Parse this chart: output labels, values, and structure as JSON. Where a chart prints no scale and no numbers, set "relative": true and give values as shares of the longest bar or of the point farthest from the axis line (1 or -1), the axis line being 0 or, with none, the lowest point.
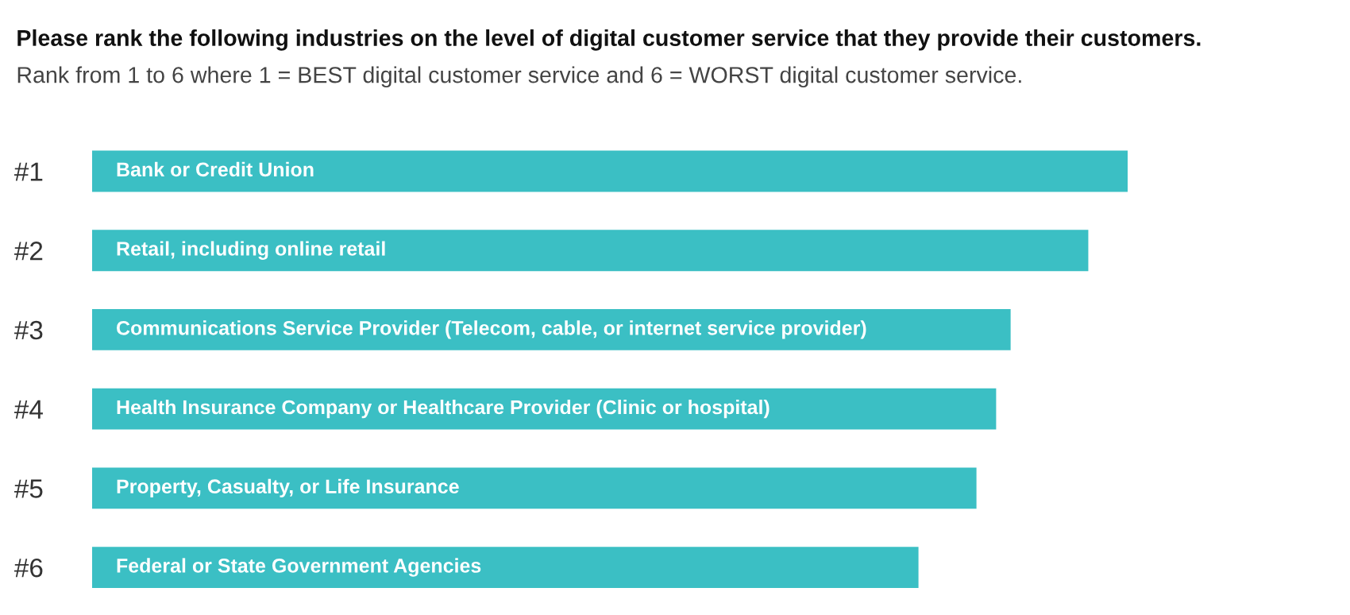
{
  "chart_data": {
    "type": "bar",
    "orientation": "horizontal",
    "relative": true,
    "title": "Please rank the following industries on the level of digital customer service that they provide their customers.",
    "subtitle": "Rank from 1 to 6 where 1 = BEST digital customer service and 6 = WORST digital customer service.",
    "categories": [
      "#1",
      "#2",
      "#3",
      "#4",
      "#5",
      "#6"
    ],
    "values": [
      1,
      0.962,
      0.887,
      0.873,
      0.854,
      0.798
    ],
    "color": "#3bbfc4",
    "annotations": [
      "Bank or Credit Union",
      "Retail, including online retail",
      "Communications Service Provider (Telecom, cable, or internet service provider)",
      "Health Insurance Company or Healthcare Provider (Clinic or hospital)",
      "Property, Casualty, or Life Insurance",
      "Federal or State Government Agencies"
    ],
    "grid": false,
    "legend": false
  }
}
